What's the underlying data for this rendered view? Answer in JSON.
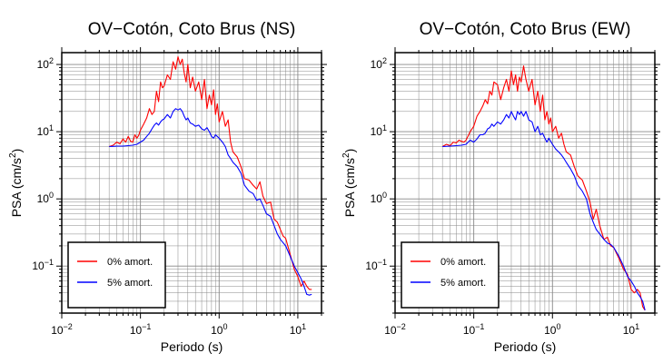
{
  "chart_data": [
    {
      "type": "line",
      "title": "OV−Cotón, Coto Brus (NS)",
      "xlabel": "Periodo (s)",
      "ylabel": "PSA (cm/s²)",
      "xscale": "log",
      "yscale": "log",
      "xlim": [
        0.01,
        20
      ],
      "ylim": [
        0.02,
        150
      ],
      "grid": true,
      "legend_position": "bottom-left",
      "xticks": [
        {
          "value": 0.01,
          "base": "10",
          "exp": "−2"
        },
        {
          "value": 0.1,
          "base": "10",
          "exp": "−1"
        },
        {
          "value": 1,
          "base": "10",
          "exp": "0"
        },
        {
          "value": 10,
          "base": "10",
          "exp": "1"
        }
      ],
      "yticks": [
        {
          "value": 0.1,
          "base": "10",
          "exp": "−1"
        },
        {
          "value": 1,
          "base": "10",
          "exp": "0"
        },
        {
          "value": 10,
          "base": "10",
          "exp": "1"
        },
        {
          "value": 100,
          "base": "10",
          "exp": "2"
        }
      ],
      "series": [
        {
          "name": "0% amort.",
          "color": "#ff0000",
          "x": [
            0.04,
            0.045,
            0.05,
            0.055,
            0.06,
            0.065,
            0.07,
            0.075,
            0.08,
            0.085,
            0.09,
            0.095,
            0.1,
            0.11,
            0.12,
            0.13,
            0.14,
            0.15,
            0.16,
            0.17,
            0.18,
            0.19,
            0.2,
            0.22,
            0.24,
            0.26,
            0.28,
            0.3,
            0.32,
            0.34,
            0.36,
            0.38,
            0.4,
            0.43,
            0.46,
            0.5,
            0.55,
            0.6,
            0.65,
            0.7,
            0.75,
            0.8,
            0.85,
            0.9,
            0.95,
            1.0,
            1.1,
            1.2,
            1.3,
            1.4,
            1.5,
            1.7,
            1.9,
            2.1,
            2.4,
            2.7,
            3.0,
            3.3,
            3.6,
            4.0,
            4.5,
            5.0,
            5.5,
            6.0,
            6.5,
            7.0,
            8.0,
            9.0,
            10,
            11,
            12,
            13,
            14,
            15
          ],
          "y": [
            6.0,
            6.3,
            7.0,
            6.6,
            7.8,
            7.0,
            8.5,
            7.2,
            7.0,
            9.0,
            8.0,
            8.8,
            10.5,
            13.0,
            16.0,
            22.0,
            18.0,
            20.0,
            40.0,
            28.0,
            55.0,
            45.0,
            48.0,
            70.0,
            60.0,
            110.0,
            85.0,
            130.0,
            100.0,
            120.0,
            75.0,
            55.0,
            100.0,
            45.0,
            65.0,
            40.0,
            55.0,
            30.0,
            60.0,
            22.0,
            35.0,
            25.0,
            42.0,
            18.0,
            26.0,
            14.0,
            20.0,
            12.0,
            15.0,
            7.0,
            5.0,
            4.2,
            3.0,
            2.0,
            1.9,
            1.6,
            1.4,
            1.8,
            1.1,
            0.85,
            0.9,
            0.5,
            0.45,
            0.35,
            0.28,
            0.26,
            0.15,
            0.09,
            0.07,
            0.05,
            0.06,
            0.05,
            0.045,
            0.045
          ]
        },
        {
          "name": "5% amort.",
          "color": "#0000ff",
          "x": [
            0.04,
            0.05,
            0.06,
            0.07,
            0.08,
            0.09,
            0.1,
            0.11,
            0.12,
            0.13,
            0.14,
            0.15,
            0.16,
            0.17,
            0.18,
            0.19,
            0.2,
            0.22,
            0.24,
            0.26,
            0.28,
            0.3,
            0.32,
            0.34,
            0.36,
            0.38,
            0.4,
            0.43,
            0.46,
            0.5,
            0.55,
            0.6,
            0.65,
            0.7,
            0.75,
            0.8,
            0.85,
            0.9,
            1.0,
            1.1,
            1.2,
            1.3,
            1.4,
            1.5,
            1.7,
            1.9,
            2.1,
            2.4,
            2.7,
            3.0,
            3.3,
            3.6,
            4.0,
            4.5,
            5.0,
            5.5,
            6.0,
            7.0,
            8.0,
            9.0,
            10,
            11,
            12,
            13,
            14,
            15
          ],
          "y": [
            6.0,
            6.1,
            6.1,
            6.2,
            6.3,
            6.5,
            7.0,
            7.5,
            8.5,
            9.5,
            11.0,
            12.5,
            13.5,
            12.5,
            14.0,
            15.0,
            15.5,
            18.0,
            16.0,
            20.0,
            22.0,
            21.0,
            22.0,
            20.0,
            17.0,
            15.0,
            16.0,
            13.5,
            13.0,
            12.0,
            12.5,
            11.0,
            10.5,
            11.5,
            10.0,
            8.5,
            8.0,
            9.0,
            8.0,
            7.0,
            6.0,
            4.5,
            4.0,
            3.5,
            3.0,
            2.4,
            1.6,
            1.3,
            1.2,
            0.95,
            1.0,
            0.8,
            0.6,
            0.55,
            0.4,
            0.3,
            0.25,
            0.2,
            0.14,
            0.1,
            0.08,
            0.065,
            0.05,
            0.038,
            0.037,
            0.038
          ]
        }
      ]
    },
    {
      "type": "line",
      "title": "OV−Cotón, Coto Brus (EW)",
      "xlabel": "Periodo (s)",
      "ylabel": "PSA (cm/s²)",
      "xscale": "log",
      "yscale": "log",
      "xlim": [
        0.01,
        20
      ],
      "ylim": [
        0.02,
        150
      ],
      "grid": true,
      "legend_position": "bottom-left",
      "xticks": [
        {
          "value": 0.01,
          "base": "10",
          "exp": "−2"
        },
        {
          "value": 0.1,
          "base": "10",
          "exp": "−1"
        },
        {
          "value": 1,
          "base": "10",
          "exp": "0"
        },
        {
          "value": 10,
          "base": "10",
          "exp": "1"
        }
      ],
      "yticks": [
        {
          "value": 0.1,
          "base": "10",
          "exp": "−1"
        },
        {
          "value": 1,
          "base": "10",
          "exp": "0"
        },
        {
          "value": 10,
          "base": "10",
          "exp": "1"
        },
        {
          "value": 100,
          "base": "10",
          "exp": "2"
        }
      ],
      "series": [
        {
          "name": "0% amort.",
          "color": "#ff0000",
          "x": [
            0.04,
            0.045,
            0.05,
            0.055,
            0.06,
            0.065,
            0.07,
            0.075,
            0.08,
            0.09,
            0.1,
            0.11,
            0.12,
            0.13,
            0.14,
            0.15,
            0.16,
            0.17,
            0.18,
            0.2,
            0.22,
            0.24,
            0.26,
            0.28,
            0.3,
            0.32,
            0.34,
            0.36,
            0.38,
            0.4,
            0.43,
            0.46,
            0.5,
            0.55,
            0.6,
            0.65,
            0.7,
            0.75,
            0.8,
            0.85,
            0.9,
            0.95,
            1.0,
            1.1,
            1.2,
            1.3,
            1.4,
            1.5,
            1.7,
            1.9,
            2.1,
            2.4,
            2.7,
            3.0,
            3.3,
            3.6,
            4.0,
            4.5,
            5.0,
            5.5,
            6.0,
            7.0,
            8.0,
            9.0,
            10,
            11,
            12,
            13,
            14,
            15
          ],
          "y": [
            6.0,
            6.5,
            6.2,
            7.0,
            6.8,
            7.5,
            7.2,
            7.0,
            7.5,
            10.0,
            12.0,
            17.0,
            20.0,
            24.0,
            30.0,
            26.0,
            40.0,
            35.0,
            55.0,
            50.0,
            30.0,
            45.0,
            60.0,
            40.0,
            80.0,
            50.0,
            70.0,
            40.0,
            65.0,
            55.0,
            95.0,
            60.0,
            40.0,
            60.0,
            25.0,
            40.0,
            20.0,
            35.0,
            15.0,
            20.0,
            13.0,
            16.0,
            10.0,
            12.0,
            8.0,
            9.5,
            6.5,
            5.0,
            4.5,
            3.0,
            2.2,
            1.9,
            1.3,
            0.9,
            0.5,
            0.7,
            0.4,
            0.25,
            0.27,
            0.2,
            0.19,
            0.13,
            0.09,
            0.075,
            0.045,
            0.04,
            0.045,
            0.04,
            0.025,
            0.022
          ]
        },
        {
          "name": "5% amort.",
          "color": "#0000ff",
          "x": [
            0.04,
            0.05,
            0.06,
            0.07,
            0.08,
            0.09,
            0.1,
            0.11,
            0.12,
            0.13,
            0.14,
            0.15,
            0.16,
            0.17,
            0.18,
            0.2,
            0.22,
            0.24,
            0.26,
            0.28,
            0.3,
            0.32,
            0.34,
            0.36,
            0.38,
            0.4,
            0.43,
            0.46,
            0.5,
            0.55,
            0.6,
            0.65,
            0.7,
            0.75,
            0.8,
            0.85,
            0.9,
            1.0,
            1.1,
            1.2,
            1.3,
            1.4,
            1.5,
            1.7,
            1.9,
            2.1,
            2.4,
            2.7,
            3.0,
            3.3,
            3.6,
            4.0,
            4.5,
            5.0,
            5.5,
            6.0,
            7.0,
            8.0,
            9.0,
            10,
            11,
            12,
            13,
            14,
            15
          ],
          "y": [
            6.0,
            6.1,
            6.2,
            6.3,
            6.5,
            7.5,
            7.0,
            7.8,
            9.0,
            9.0,
            9.5,
            11.0,
            11.5,
            13.0,
            12.0,
            14.0,
            13.0,
            15.0,
            18.0,
            16.0,
            20.0,
            17.0,
            15.0,
            20.0,
            18.0,
            20.0,
            17.0,
            20.0,
            15.0,
            14.0,
            10.0,
            12.0,
            9.0,
            9.5,
            8.0,
            7.0,
            8.0,
            6.5,
            5.5,
            5.0,
            4.5,
            4.0,
            3.5,
            2.8,
            2.2,
            1.6,
            1.3,
            1.0,
            0.6,
            0.45,
            0.35,
            0.3,
            0.25,
            0.22,
            0.21,
            0.19,
            0.14,
            0.1,
            0.07,
            0.06,
            0.05,
            0.04,
            0.035,
            0.03,
            0.022
          ]
        }
      ]
    }
  ]
}
